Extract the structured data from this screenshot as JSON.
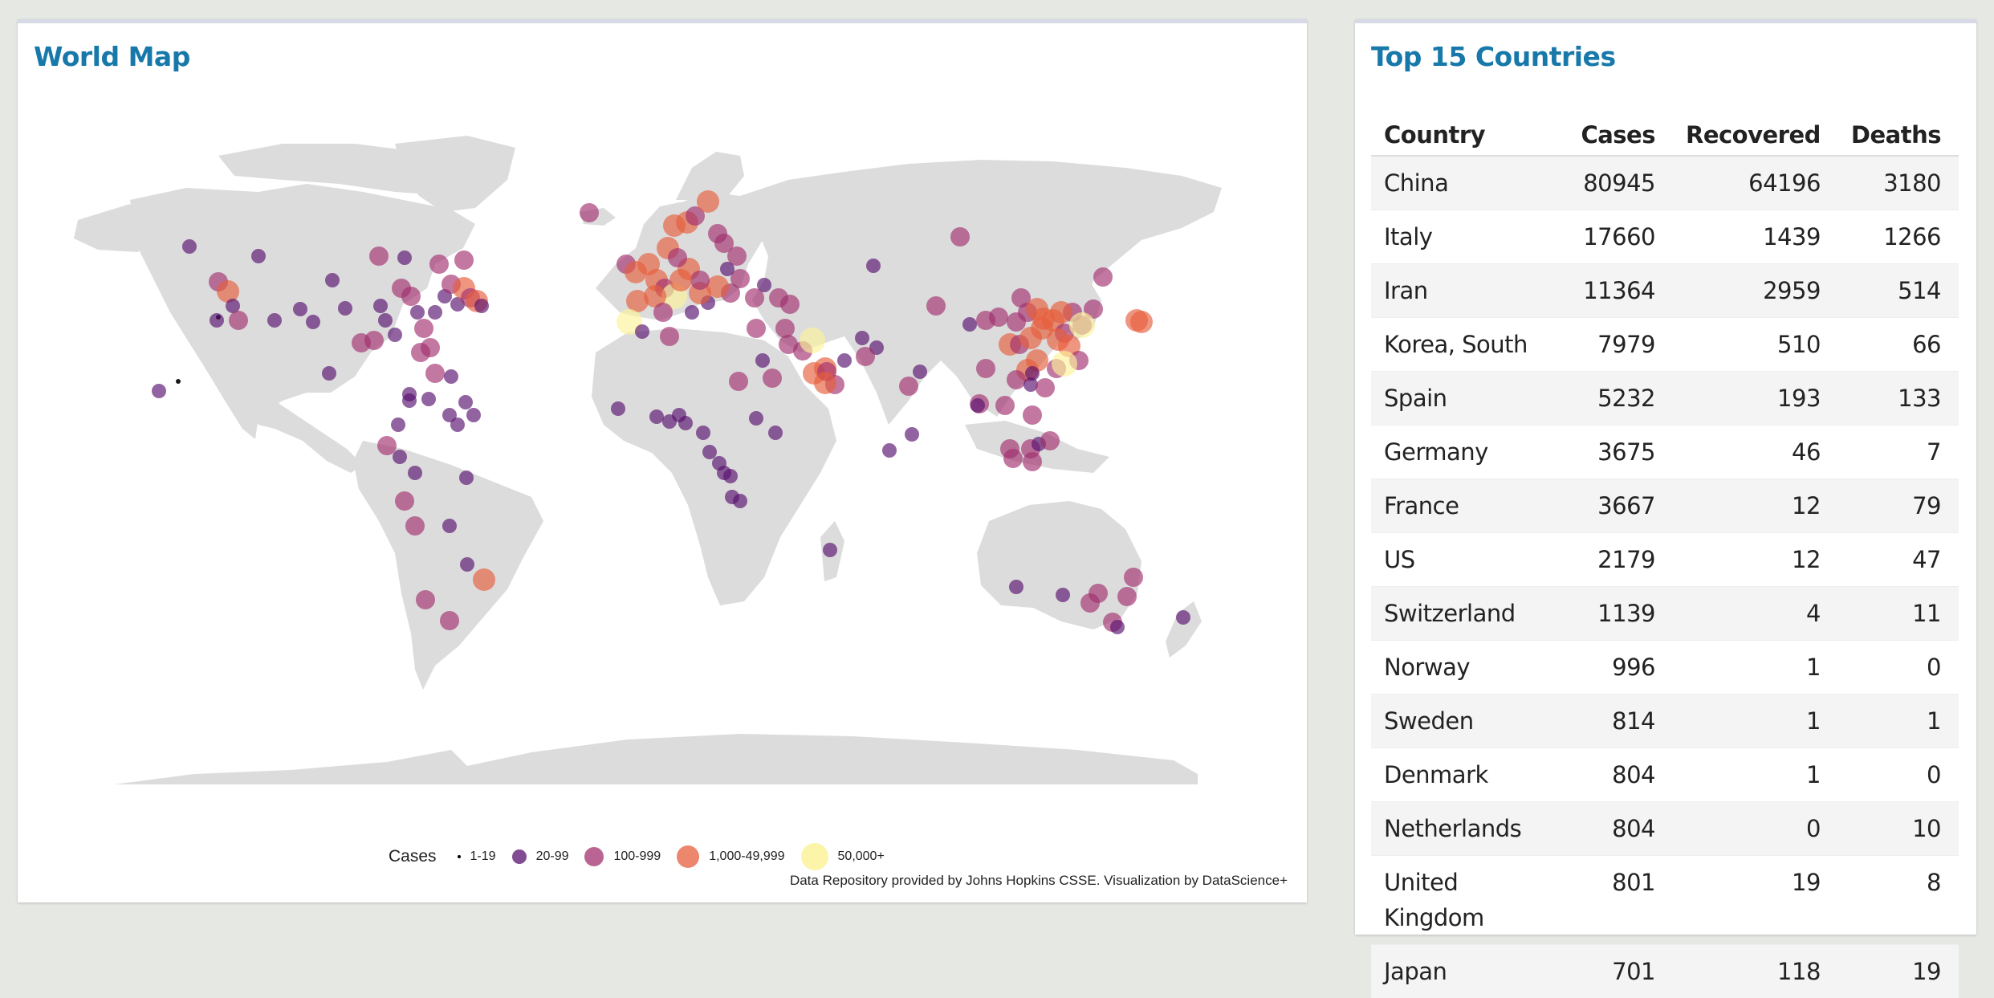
{
  "map_panel": {
    "title": "World Map",
    "legend": {
      "title": "Cases",
      "items": [
        {
          "label": "1-19",
          "color": "#000004"
        },
        {
          "label": "20-99",
          "color": "#57106e"
        },
        {
          "label": "100-999",
          "color": "#a1306f"
        },
        {
          "label": "1,000-49,999",
          "color": "#e65d3c"
        },
        {
          "label": "50,000+",
          "color": "#fcf39a"
        }
      ]
    },
    "credit": "Data Repository provided by Johns Hopkins CSSE. Visualization by DataScience+"
  },
  "table_panel": {
    "title": "Top 15 Countries",
    "columns": [
      "Country",
      "Cases",
      "Recovered",
      "Deaths"
    ],
    "rows": [
      [
        "China",
        "80945",
        "64196",
        "3180"
      ],
      [
        "Italy",
        "17660",
        "1439",
        "1266"
      ],
      [
        "Iran",
        "11364",
        "2959",
        "514"
      ],
      [
        "Korea, South",
        "7979",
        "510",
        "66"
      ],
      [
        "Spain",
        "5232",
        "193",
        "133"
      ],
      [
        "Germany",
        "3675",
        "46",
        "7"
      ],
      [
        "France",
        "3667",
        "12",
        "79"
      ],
      [
        "US",
        "2179",
        "12",
        "47"
      ],
      [
        "Switzerland",
        "1139",
        "4",
        "11"
      ],
      [
        "Norway",
        "996",
        "1",
        "0"
      ],
      [
        "Sweden",
        "814",
        "1",
        "1"
      ],
      [
        "Denmark",
        "804",
        "1",
        "0"
      ],
      [
        "Netherlands",
        "804",
        "0",
        "10"
      ],
      [
        "United Kingdom",
        "801",
        "19",
        "8"
      ],
      [
        "Japan",
        "701",
        "118",
        "19"
      ]
    ]
  },
  "colors": {
    "title": "#1778aa",
    "land": "#dcdcdc",
    "background": "#e6e8e4"
  }
}
